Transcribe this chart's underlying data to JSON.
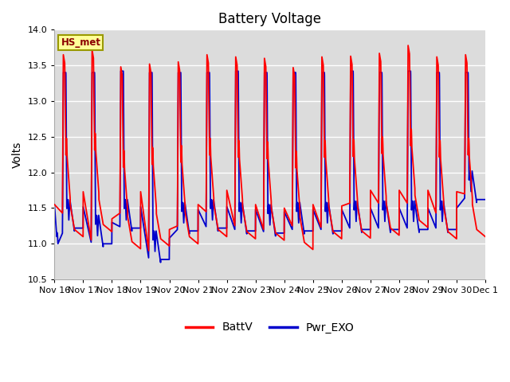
{
  "title": "Battery Voltage",
  "ylabel": "Volts",
  "ylim": [
    10.5,
    14.0
  ],
  "yticks": [
    10.5,
    11.0,
    11.5,
    12.0,
    12.5,
    13.0,
    13.5,
    14.0
  ],
  "x_labels": [
    "Nov 16",
    "Nov 17",
    "Nov 18",
    "Nov 19",
    "Nov 20",
    "Nov 21",
    "Nov 22",
    "Nov 23",
    "Nov 24",
    "Nov 25",
    "Nov 26",
    "Nov 27",
    "Nov 28",
    "Nov 29",
    "Nov 30",
    "Dec 1"
  ],
  "legend_labels": [
    "BattV",
    "Pwr_EXO"
  ],
  "line_colors": [
    "#ff0000",
    "#0000cc"
  ],
  "site_label": "HS_met",
  "bg_inner": "#dcdcdc",
  "bg_outer": "#ffffff",
  "n_days": 15,
  "batt_peaks": [
    13.65,
    13.72,
    13.48,
    13.52,
    13.55,
    13.65,
    13.62,
    13.6,
    13.47,
    13.62,
    13.63,
    13.67,
    13.78,
    13.62,
    13.65
  ],
  "batt_troughs": [
    11.38,
    11.0,
    11.38,
    10.85,
    11.2,
    11.4,
    11.2,
    11.15,
    11.2,
    11.18,
    11.52,
    11.52,
    11.52,
    11.38,
    11.65
  ],
  "exo_peaks": [
    13.4,
    13.4,
    13.42,
    13.4,
    13.4,
    13.4,
    13.42,
    13.4,
    13.4,
    13.4,
    13.42,
    13.4,
    13.42,
    13.4,
    13.4
  ],
  "exo_troughs": [
    11.22,
    11.0,
    11.22,
    10.78,
    11.18,
    11.22,
    11.18,
    11.15,
    11.18,
    11.18,
    11.2,
    11.2,
    11.2,
    11.2,
    11.62
  ]
}
